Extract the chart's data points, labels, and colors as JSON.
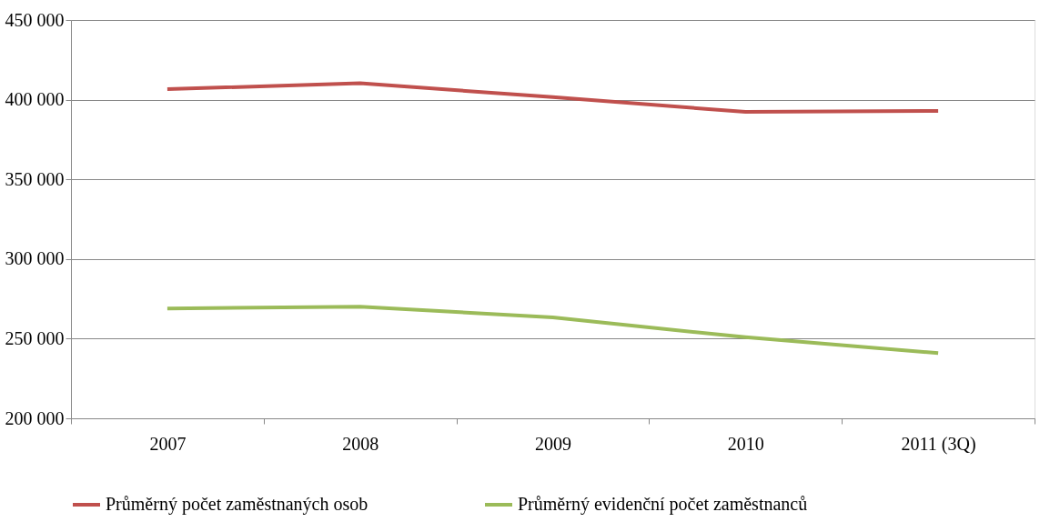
{
  "chart_data": {
    "type": "line",
    "categories": [
      "2007",
      "2008",
      "2009",
      "2010",
      "2011 (3Q)"
    ],
    "series": [
      {
        "name": "Průměrný počet zaměstnaných osob",
        "color": "#c0504d",
        "values": [
          406600,
          410300,
          401600,
          392300,
          392900
        ]
      },
      {
        "name": "Průměrný evidenční počet zaměstnanců",
        "color": "#9bbb59",
        "values": [
          268900,
          270100,
          263300,
          250900,
          240900
        ]
      }
    ],
    "ylim": [
      200000,
      450000
    ],
    "yticks": [
      {
        "value": 200000,
        "label": "200 000"
      },
      {
        "value": 250000,
        "label": "250 000"
      },
      {
        "value": 300000,
        "label": "300 000"
      },
      {
        "value": 350000,
        "label": "350 000"
      },
      {
        "value": 400000,
        "label": "400 000"
      },
      {
        "value": 450000,
        "label": "450 000"
      }
    ],
    "grid": "y",
    "legend": "bottom",
    "marker": "none",
    "line_style": "solid"
  }
}
